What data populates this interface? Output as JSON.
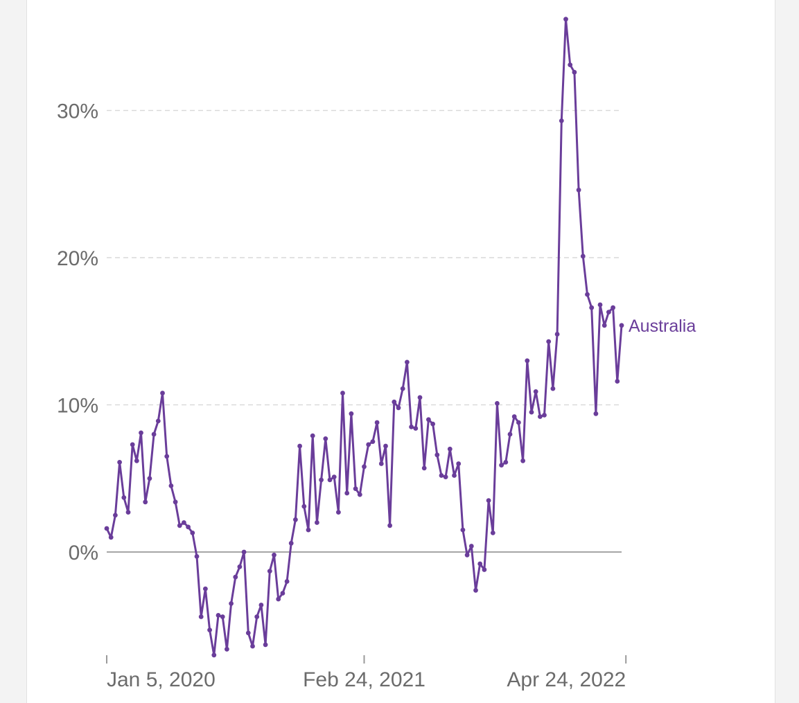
{
  "chart_data": {
    "type": "line",
    "title": "",
    "xlabel": "",
    "ylabel": "",
    "ylim": [
      -7,
      36.5
    ],
    "grid": true,
    "y_ticks": [
      {
        "value": 0,
        "label": "0%"
      },
      {
        "value": 10,
        "label": "10%"
      },
      {
        "value": 20,
        "label": "20%"
      },
      {
        "value": 30,
        "label": "30%"
      }
    ],
    "x_ticks": [
      {
        "label": "Jan 5, 2020",
        "index": 0
      },
      {
        "label": "Feb 24, 2021",
        "index": 60
      },
      {
        "label": "Apr 24, 2022",
        "index": 121
      }
    ],
    "series": [
      {
        "name": "Australia",
        "color": "#6a3d9a",
        "values": [
          1.6,
          1.0,
          2.5,
          6.1,
          3.7,
          2.7,
          7.3,
          6.2,
          8.1,
          3.4,
          5.0,
          8.0,
          8.9,
          10.8,
          6.5,
          4.5,
          3.4,
          1.8,
          2.0,
          1.7,
          1.3,
          -0.3,
          -4.4,
          -2.5,
          -5.3,
          -7.0,
          -4.3,
          -4.4,
          -6.6,
          -3.5,
          -1.7,
          -1.0,
          0.0,
          -5.5,
          -6.4,
          -4.4,
          -3.6,
          -6.3,
          -1.3,
          -0.2,
          -3.2,
          -2.8,
          -2.0,
          0.6,
          2.2,
          7.2,
          3.1,
          1.5,
          7.9,
          2.0,
          4.9,
          7.7,
          4.9,
          5.1,
          2.7,
          10.8,
          4.0,
          9.4,
          4.3,
          3.9,
          5.8,
          7.3,
          7.5,
          8.8,
          6.0,
          7.2,
          1.8,
          10.2,
          9.8,
          11.1,
          12.9,
          8.5,
          8.4,
          10.5,
          5.7,
          9.0,
          8.7,
          6.6,
          5.2,
          5.1,
          7.0,
          5.2,
          6.0,
          1.5,
          -0.2,
          0.4,
          -2.6,
          -0.8,
          -1.2,
          3.5,
          1.3,
          10.1,
          5.9,
          6.1,
          8.0,
          9.2,
          8.8,
          6.2,
          13.0,
          9.5,
          10.9,
          9.2,
          9.3,
          14.3,
          11.1,
          14.8,
          29.3,
          36.2,
          33.1,
          32.6,
          24.6,
          20.1,
          17.5,
          16.6,
          9.4,
          16.8,
          15.4,
          16.3,
          16.6,
          11.6,
          15.4
        ]
      }
    ]
  }
}
